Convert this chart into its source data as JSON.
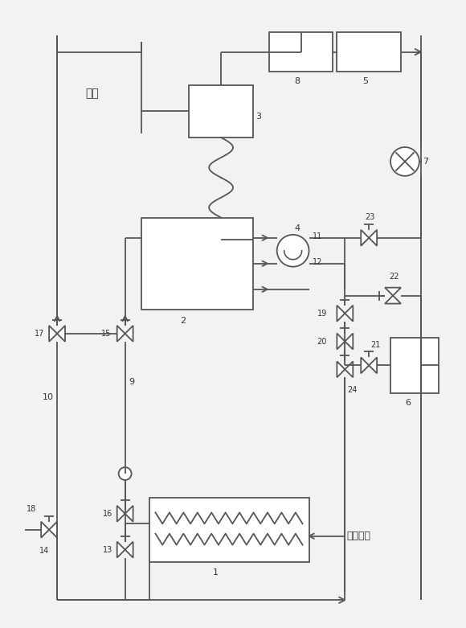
{
  "bg_color": "#f2f2f2",
  "line_color": "#555555",
  "line_width": 1.3,
  "fig_width": 5.8,
  "fig_height": 7.81
}
